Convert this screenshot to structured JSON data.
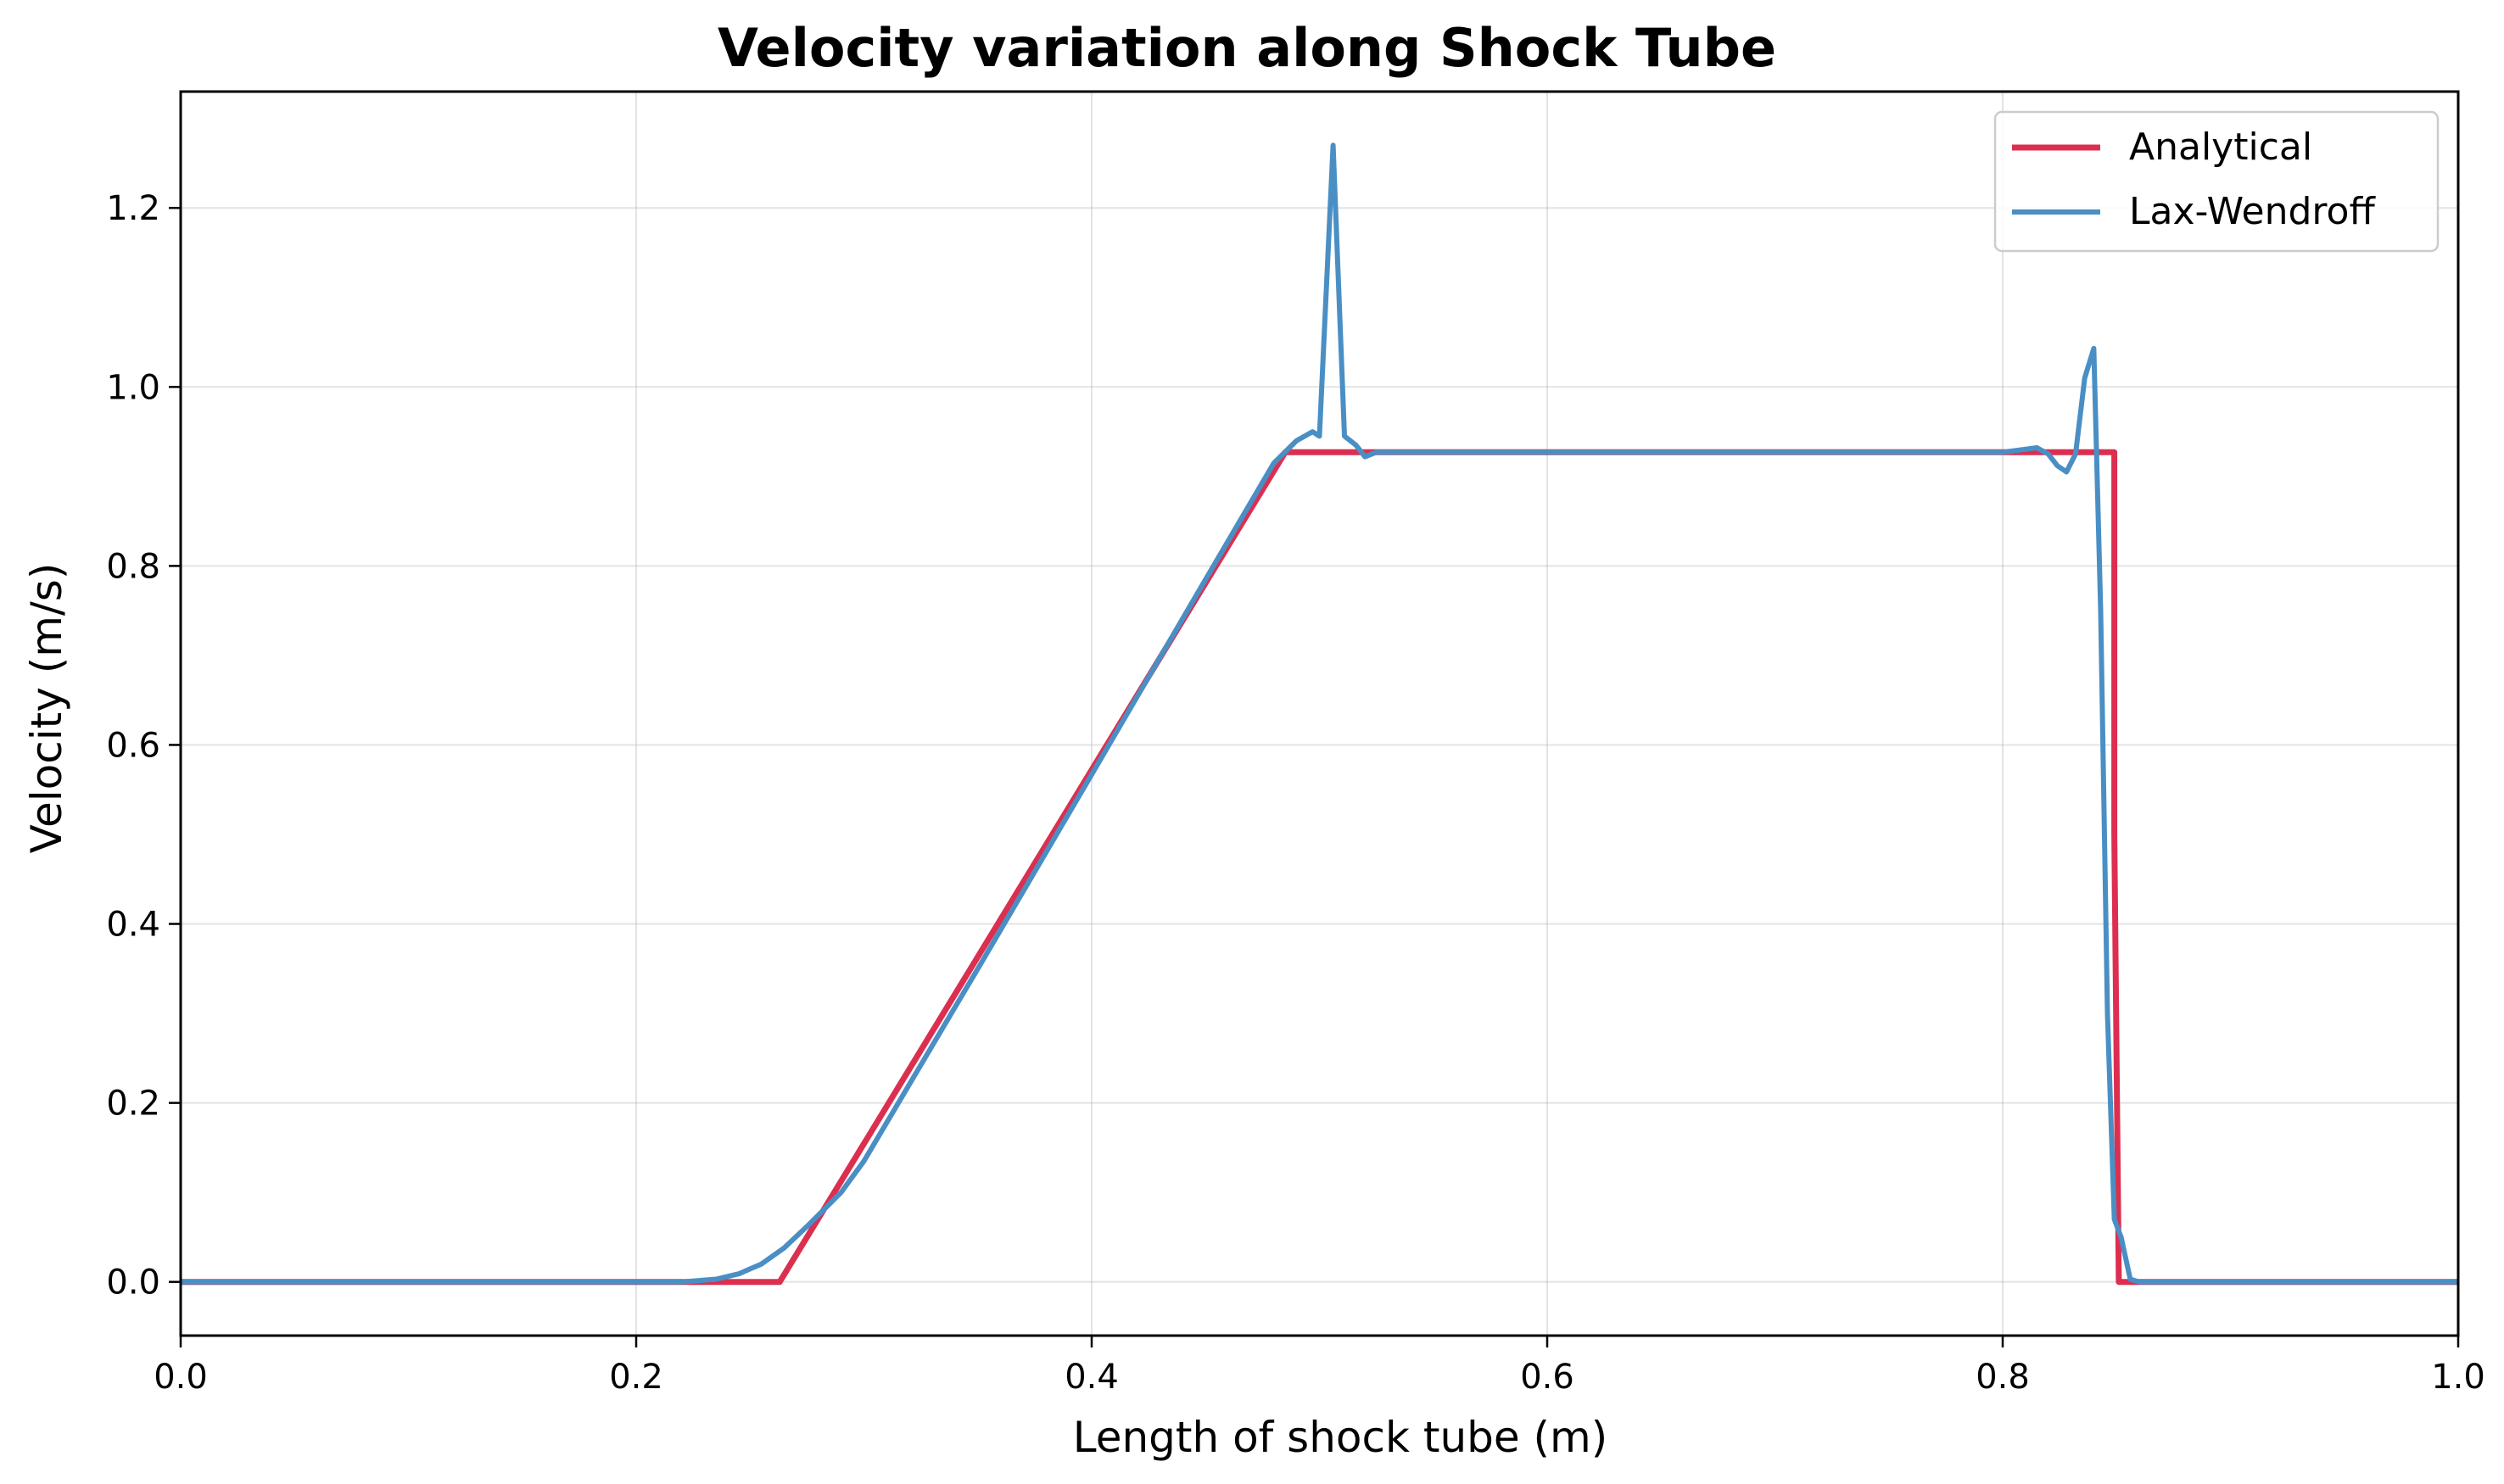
{
  "chart_data": {
    "type": "line",
    "title": "Velocity variation along Shock Tube",
    "xlabel": "Length of shock tube (m)",
    "ylabel": "Velocity (m/s)",
    "xlim": [
      0.0,
      1.0
    ],
    "ylim": [
      -0.06,
      1.33
    ],
    "xticks": [
      0.0,
      0.2,
      0.4,
      0.6,
      0.8,
      1.0
    ],
    "xtick_labels": [
      "0.0",
      "0.2",
      "0.4",
      "0.6",
      "0.8",
      "1.0"
    ],
    "yticks": [
      0.0,
      0.2,
      0.4,
      0.6,
      0.8,
      1.0,
      1.2
    ],
    "ytick_labels": [
      "0.0",
      "0.2",
      "0.4",
      "0.6",
      "0.8",
      "1.0",
      "1.2"
    ],
    "grid": true,
    "legend_position": "top-right",
    "series": [
      {
        "name": "Analytical",
        "color": "#dc2f50",
        "x": [
          0.0,
          0.263,
          0.485,
          0.849,
          0.849,
          0.851,
          1.0
        ],
        "y": [
          0.0,
          0.0,
          0.927,
          0.927,
          0.5,
          0.0,
          0.0
        ]
      },
      {
        "name": "Lax-Wendroff",
        "color": "#4a8fc4",
        "x": [
          0.0,
          0.22,
          0.235,
          0.245,
          0.255,
          0.265,
          0.275,
          0.29,
          0.3,
          0.35,
          0.4,
          0.45,
          0.48,
          0.49,
          0.497,
          0.5,
          0.506,
          0.511,
          0.516,
          0.52,
          0.525,
          0.6,
          0.7,
          0.8,
          0.815,
          0.82,
          0.824,
          0.828,
          0.832,
          0.836,
          0.84,
          0.843,
          0.846,
          0.849,
          0.852,
          0.856,
          0.86,
          1.0
        ],
        "y": [
          0.0,
          0.0,
          0.003,
          0.009,
          0.02,
          0.038,
          0.062,
          0.1,
          0.135,
          0.35,
          0.567,
          0.785,
          0.915,
          0.94,
          0.95,
          0.945,
          1.27,
          0.945,
          0.935,
          0.922,
          0.927,
          0.927,
          0.927,
          0.927,
          0.932,
          0.925,
          0.912,
          0.905,
          0.925,
          1.01,
          1.043,
          0.75,
          0.3,
          0.07,
          0.05,
          0.003,
          0.0,
          0.0
        ]
      }
    ]
  }
}
